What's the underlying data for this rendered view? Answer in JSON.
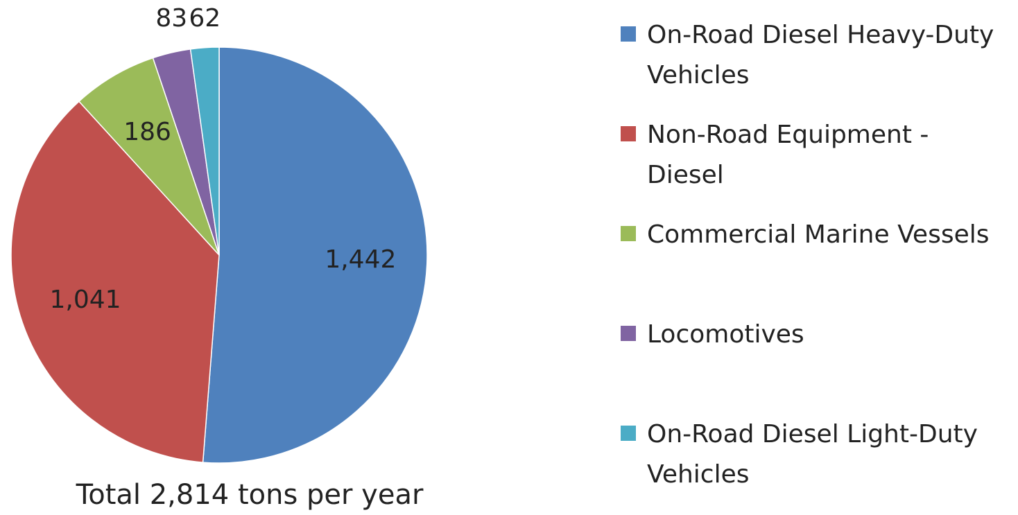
{
  "chart_data": {
    "type": "pie",
    "title": "Total 2,814 tons per year",
    "categories": [
      "On-Road Diesel Heavy-Duty Vehicles",
      "Non-Road Equipment - Diesel",
      "Commercial Marine Vessels",
      "Locomotives",
      "On-Road Diesel Light-Duty Vehicles"
    ],
    "values": [
      1442,
      1041,
      186,
      83,
      62
    ],
    "value_labels": [
      "1,442",
      "1,041",
      "186",
      "83",
      "62"
    ],
    "colors": [
      "#4f81bd",
      "#c0504d",
      "#9bbb59",
      "#8064a2",
      "#4bacc6"
    ],
    "legend": "right"
  }
}
